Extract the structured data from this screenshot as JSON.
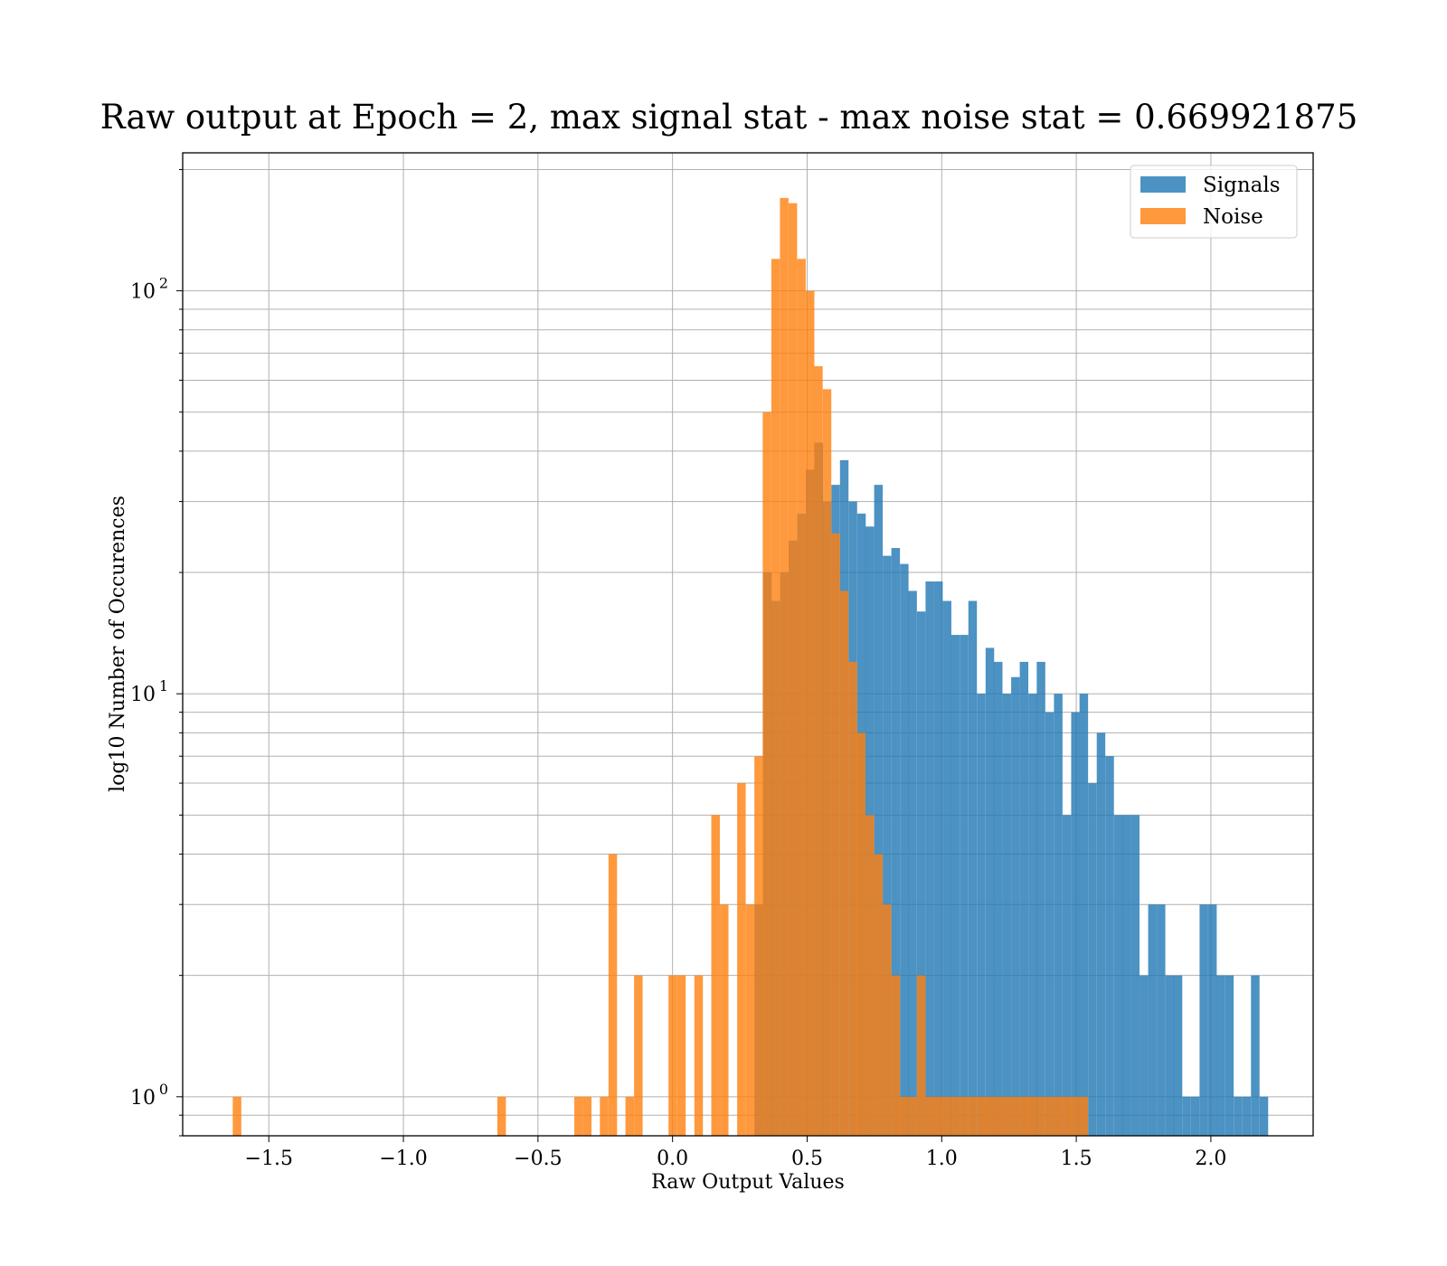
{
  "chart_data": {
    "type": "bar",
    "title": "Raw output at Epoch = 2, max signal stat - max noise stat = 0.669921875",
    "xlabel": "Raw Output Values",
    "ylabel": "log10 Number of Occurences",
    "yscale": "log",
    "xlim": [
      -1.82,
      2.38
    ],
    "ylim": [
      0.8,
      220
    ],
    "xticks": [
      -1.5,
      -1.0,
      -0.5,
      0.0,
      0.5,
      1.0,
      1.5,
      2.0
    ],
    "xtick_labels": [
      "−1.5",
      "−1.0",
      "−0.5",
      "0.0",
      "0.5",
      "1.0",
      "1.5",
      "2.0"
    ],
    "yticks": [
      {
        "value": 1,
        "base": "10",
        "exp": "0"
      },
      {
        "value": 10,
        "base": "10",
        "exp": "1"
      },
      {
        "value": 100,
        "base": "10",
        "exp": "2"
      }
    ],
    "grid": true,
    "legend_position": "top-right",
    "bin_width": 0.0318,
    "series": [
      {
        "name": "Signals",
        "color": "#1f77b4",
        "opacity": 0.8,
        "bins": [
          [
            0.304,
            3
          ],
          [
            0.336,
            20
          ],
          [
            0.367,
            17
          ],
          [
            0.399,
            20
          ],
          [
            0.431,
            24
          ],
          [
            0.463,
            28
          ],
          [
            0.495,
            36
          ],
          [
            0.527,
            42
          ],
          [
            0.558,
            30
          ],
          [
            0.59,
            33
          ],
          [
            0.622,
            38
          ],
          [
            0.654,
            30
          ],
          [
            0.686,
            28
          ],
          [
            0.717,
            26
          ],
          [
            0.749,
            33
          ],
          [
            0.781,
            22
          ],
          [
            0.813,
            23
          ],
          [
            0.845,
            21
          ],
          [
            0.876,
            18
          ],
          [
            0.908,
            16
          ],
          [
            0.94,
            19
          ],
          [
            0.972,
            19
          ],
          [
            1.004,
            17
          ],
          [
            1.035,
            14
          ],
          [
            1.067,
            14
          ],
          [
            1.099,
            17
          ],
          [
            1.131,
            10
          ],
          [
            1.163,
            13
          ],
          [
            1.194,
            12
          ],
          [
            1.226,
            10
          ],
          [
            1.258,
            11
          ],
          [
            1.29,
            12
          ],
          [
            1.322,
            10
          ],
          [
            1.353,
            12
          ],
          [
            1.385,
            9
          ],
          [
            1.417,
            10
          ],
          [
            1.449,
            5
          ],
          [
            1.481,
            9
          ],
          [
            1.512,
            10
          ],
          [
            1.544,
            6
          ],
          [
            1.576,
            8
          ],
          [
            1.608,
            7
          ],
          [
            1.64,
            5
          ],
          [
            1.671,
            5
          ],
          [
            1.703,
            5
          ],
          [
            1.735,
            2
          ],
          [
            1.767,
            3
          ],
          [
            1.799,
            3
          ],
          [
            1.831,
            2
          ],
          [
            1.862,
            2
          ],
          [
            1.894,
            1
          ],
          [
            1.926,
            1
          ],
          [
            1.958,
            3
          ],
          [
            1.99,
            3
          ],
          [
            2.021,
            2
          ],
          [
            2.053,
            2
          ],
          [
            2.085,
            1
          ],
          [
            2.117,
            1
          ],
          [
            2.149,
            2
          ],
          [
            2.181,
            1
          ]
        ]
      },
      {
        "name": "Noise",
        "color": "#ff7f0e",
        "opacity": 0.8,
        "bins": [
          [
            -1.634,
            1
          ],
          [
            -0.651,
            1
          ],
          [
            -0.365,
            1
          ],
          [
            -0.333,
            1
          ],
          [
            -0.27,
            1
          ],
          [
            -0.238,
            4
          ],
          [
            -0.175,
            1
          ],
          [
            -0.143,
            2
          ],
          [
            -0.015,
            2
          ],
          [
            0.017,
            2
          ],
          [
            0.081,
            2
          ],
          [
            0.144,
            5
          ],
          [
            0.176,
            3
          ],
          [
            0.24,
            6
          ],
          [
            0.272,
            3
          ],
          [
            0.304,
            7
          ],
          [
            0.335,
            50
          ],
          [
            0.367,
            120
          ],
          [
            0.399,
            170
          ],
          [
            0.431,
            165
          ],
          [
            0.463,
            120
          ],
          [
            0.495,
            100
          ],
          [
            0.526,
            65
          ],
          [
            0.558,
            57
          ],
          [
            0.59,
            25
          ],
          [
            0.622,
            18
          ],
          [
            0.654,
            12
          ],
          [
            0.685,
            8
          ],
          [
            0.717,
            5
          ],
          [
            0.749,
            4
          ],
          [
            0.781,
            3
          ],
          [
            0.813,
            2
          ],
          [
            0.844,
            1
          ],
          [
            0.876,
            1
          ],
          [
            0.908,
            2
          ],
          [
            0.94,
            1
          ],
          [
            0.972,
            1
          ],
          [
            1.003,
            1
          ],
          [
            1.035,
            1
          ],
          [
            1.067,
            1
          ],
          [
            1.099,
            1
          ],
          [
            1.131,
            1
          ],
          [
            1.162,
            1
          ],
          [
            1.194,
            1
          ],
          [
            1.226,
            1
          ],
          [
            1.258,
            1
          ],
          [
            1.29,
            1
          ],
          [
            1.321,
            1
          ],
          [
            1.353,
            1
          ],
          [
            1.385,
            1
          ],
          [
            1.417,
            1
          ],
          [
            1.449,
            1
          ],
          [
            1.48,
            1
          ],
          [
            1.512,
            1
          ]
        ]
      }
    ]
  }
}
